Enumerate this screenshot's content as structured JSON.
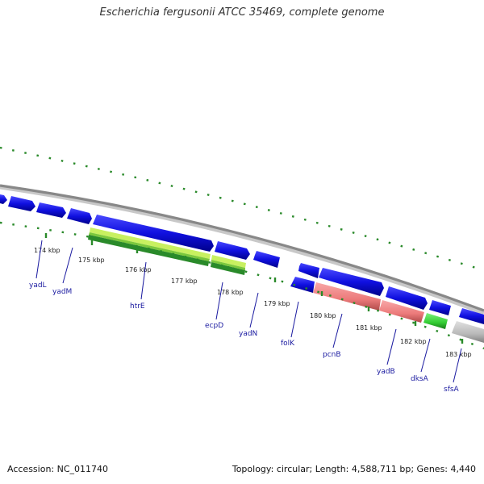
{
  "title": "Escherichia fergusonii ATCC 35469, complete genome",
  "footer": {
    "accession": "Accession: NC_011740",
    "summary": "Topology: circular; Length: 4,588,711 bp; Genes: 4,440"
  },
  "colors": {
    "cds": "#1010e0",
    "rna": "#a0e050",
    "rna_dark": "#2a8a2a",
    "pseudo": "#f08080",
    "green": "#33cc33",
    "gray": "#b8b8b8",
    "backbone": "#888888",
    "tick": "#2a8a2a",
    "label": "#1a1aa0"
  },
  "ticks": [
    {
      "label": "174 kbp"
    },
    {
      "label": "175 kbp"
    },
    {
      "label": "176 kbp"
    },
    {
      "label": "177 kbp"
    },
    {
      "label": "178 kbp"
    },
    {
      "label": "179 kbp"
    },
    {
      "label": "180 kbp"
    },
    {
      "label": "181 kbp"
    },
    {
      "label": "182 kbp"
    },
    {
      "label": "183 kbp"
    }
  ],
  "genes": [
    {
      "name": "yadL"
    },
    {
      "name": "yadM"
    },
    {
      "name": "htrE"
    },
    {
      "name": "ecpD"
    },
    {
      "name": "yadN"
    },
    {
      "name": "folK"
    },
    {
      "name": "pcnB"
    },
    {
      "name": "yadB"
    },
    {
      "name": "dksA"
    },
    {
      "name": "sfsA"
    }
  ]
}
